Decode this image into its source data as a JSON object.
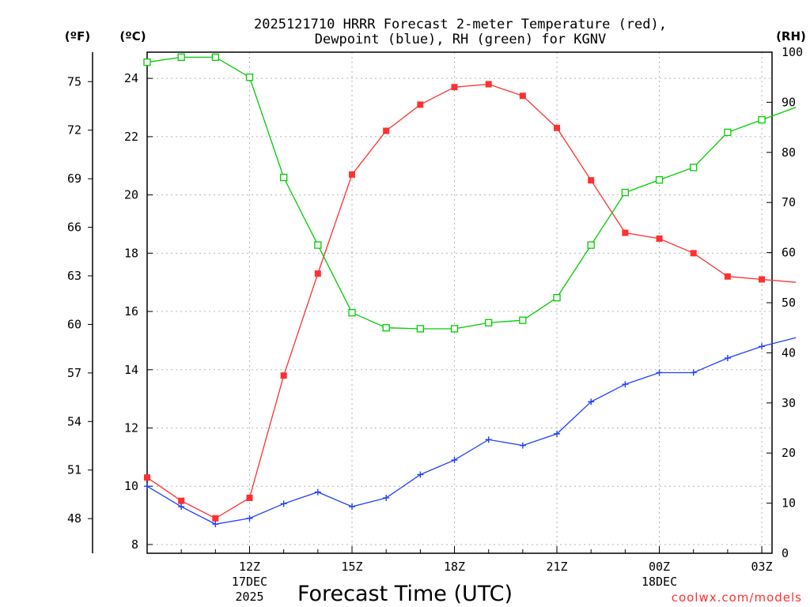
{
  "chart_data": {
    "type": "line",
    "title_line1": "2025121710 HRRR Forecast 2-meter Temperature (red),",
    "title_line2": "Dewpoint (blue), RH (green) for KGNV",
    "xlabel": "Forecast Time (UTC)",
    "watermark": "coolwx.com/models",
    "unit_labels": {
      "fahrenheit": "(ºF)",
      "celsius": "(ºC)",
      "rh": "(RH)"
    },
    "x_hours": [
      9,
      10,
      11,
      12,
      13,
      14,
      15,
      16,
      17,
      18,
      19,
      20,
      21,
      22,
      23,
      24,
      25,
      26,
      27,
      28
    ],
    "xlim": [
      9,
      27.3
    ],
    "x_ticks": [
      {
        "hour": 12,
        "label": "12Z",
        "sub1": "17DEC",
        "sub2": "2025"
      },
      {
        "hour": 15,
        "label": "15Z",
        "sub1": "",
        "sub2": ""
      },
      {
        "hour": 18,
        "label": "18Z",
        "sub1": "",
        "sub2": ""
      },
      {
        "hour": 21,
        "label": "21Z",
        "sub1": "",
        "sub2": ""
      },
      {
        "hour": 24,
        "label": "00Z",
        "sub1": "18DEC",
        "sub2": ""
      },
      {
        "hour": 27,
        "label": "03Z",
        "sub1": "",
        "sub2": ""
      }
    ],
    "ylim_celsius": [
      7.7,
      24.9
    ],
    "celsius_ticks": [
      8,
      10,
      12,
      14,
      16,
      18,
      20,
      22,
      24
    ],
    "fahrenheit_ticks": [
      48,
      51,
      54,
      57,
      60,
      63,
      66,
      69,
      72,
      75
    ],
    "rh_ticks": [
      0,
      10,
      20,
      30,
      40,
      50,
      60,
      70,
      80,
      90,
      100
    ],
    "series": [
      {
        "name": "Temperature",
        "color": "#ff3030",
        "marker": "filled-square",
        "values": [
          10.3,
          9.5,
          8.9,
          9.6,
          13.8,
          17.3,
          20.7,
          22.2,
          23.1,
          23.7,
          23.8,
          23.4,
          22.3,
          20.5,
          18.7,
          18.5,
          18.0,
          17.2,
          17.1,
          17.0
        ]
      },
      {
        "name": "Dewpoint",
        "color": "#2040ff",
        "marker": "plus",
        "values": [
          10.0,
          9.3,
          8.7,
          8.9,
          9.4,
          9.8,
          9.3,
          9.6,
          10.4,
          10.9,
          11.6,
          11.4,
          11.8,
          12.9,
          13.5,
          13.9,
          13.9,
          14.4,
          14.8,
          15.1
        ]
      },
      {
        "name": "RH",
        "color": "#00cc00",
        "marker": "open-square",
        "values": [
          98,
          99,
          99,
          95,
          75,
          61.5,
          48,
          45,
          44.8,
          44.8,
          46,
          46.5,
          51,
          61.5,
          72,
          74.5,
          77,
          84,
          86.5,
          89
        ]
      }
    ]
  }
}
